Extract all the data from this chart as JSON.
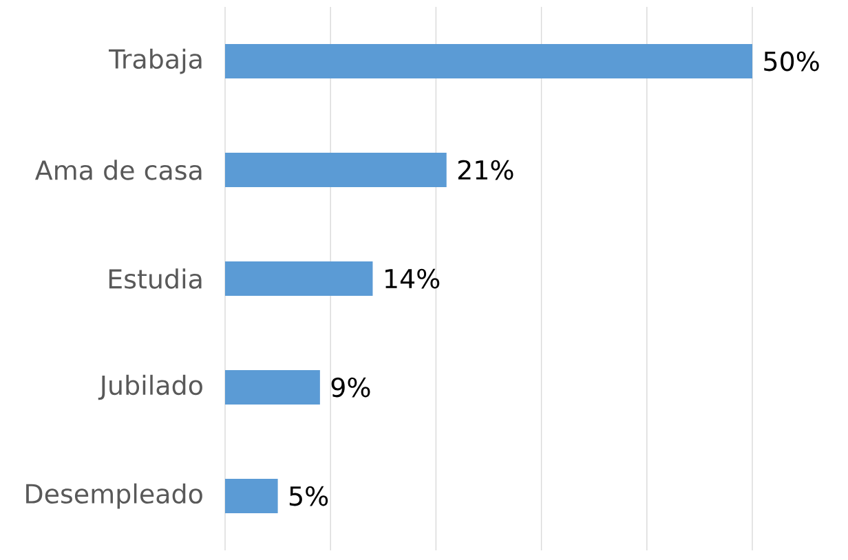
{
  "chart_data": {
    "type": "bar",
    "orientation": "horizontal",
    "categories": [
      "Trabaja",
      "Ama de casa",
      "Estudia",
      "Jubilado",
      "Desempleado"
    ],
    "values": [
      50,
      21,
      14,
      9,
      5
    ],
    "value_labels": [
      "50%",
      "21%",
      "14%",
      "9%",
      "5%"
    ],
    "color": "#5b9bd5",
    "xlim": [
      0,
      50
    ],
    "xticks": [
      {
        "value": 0,
        "label": null
      },
      {
        "value": 10,
        "label": null
      },
      {
        "value": 20,
        "label": null
      },
      {
        "value": 30,
        "label": null
      },
      {
        "value": 40,
        "label": null
      },
      {
        "value": 50,
        "label": null
      }
    ],
    "grid": "x",
    "tick_labels": "y"
  }
}
